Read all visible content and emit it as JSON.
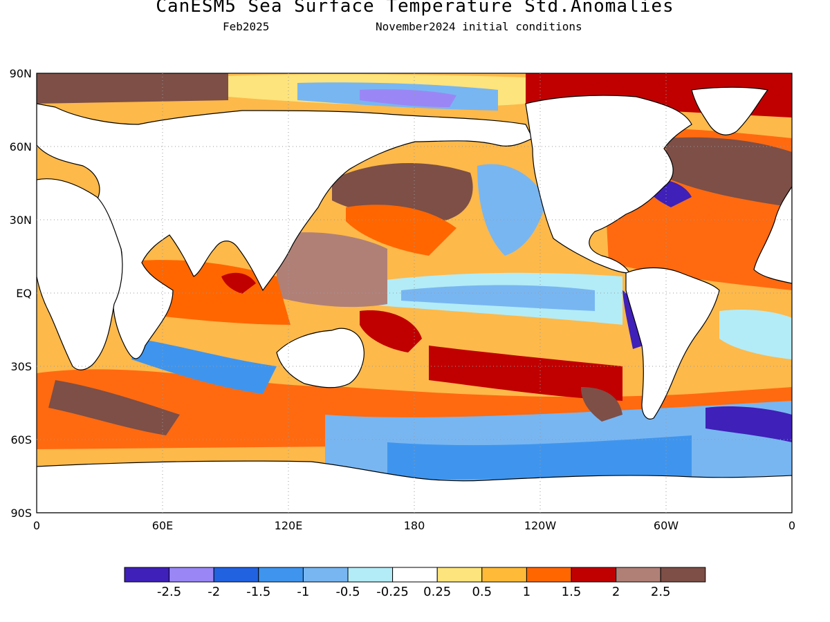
{
  "title": "CanESM5 Sea Surface Temperature Std.Anomalies",
  "valid_month": "Feb2025",
  "initial_conditions": "November2024 initial conditions",
  "lat_labels": [
    "90N",
    "60N",
    "30N",
    "EQ",
    "30S",
    "60S",
    "90S"
  ],
  "lon_labels": [
    "0",
    "60E",
    "120E",
    "180",
    "120W",
    "60W",
    "0"
  ],
  "colorbar": {
    "colors": [
      "#3f20b8",
      "#9a87f5",
      "#2162e0",
      "#3f95ee",
      "#78b6f2",
      "#b3ecf7",
      "#ffffff",
      "#fde47c",
      "#ffbb38",
      "#ff6600",
      "#c00000",
      "#b08077",
      "#7d4f47"
    ],
    "labels": [
      "-2.5",
      "-2",
      "-1.5",
      "-1",
      "-0.5",
      "-0.25",
      "0.25",
      "0.5",
      "1",
      "1.5",
      "2",
      "2.5"
    ]
  }
}
